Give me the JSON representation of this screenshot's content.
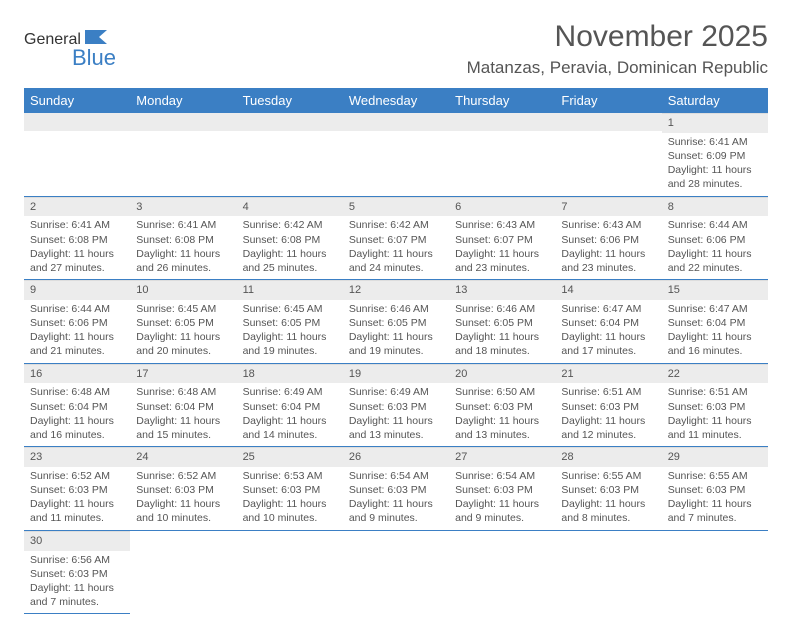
{
  "logo": {
    "part1": "General",
    "part2": "Blue"
  },
  "title": "November 2025",
  "location": "Matanzas, Peravia, Dominican Republic",
  "daysOfWeek": [
    "Sunday",
    "Monday",
    "Tuesday",
    "Wednesday",
    "Thursday",
    "Friday",
    "Saturday"
  ],
  "colors": {
    "header_bg": "#3b7fc4",
    "daynum_bg": "#ececec",
    "text": "#555555",
    "border": "#3b7fc4"
  },
  "startOffset": 6,
  "days": [
    {
      "n": 1,
      "sr": "6:41 AM",
      "ss": "6:09 PM",
      "dl": "11 hours and 28 minutes."
    },
    {
      "n": 2,
      "sr": "6:41 AM",
      "ss": "6:08 PM",
      "dl": "11 hours and 27 minutes."
    },
    {
      "n": 3,
      "sr": "6:41 AM",
      "ss": "6:08 PM",
      "dl": "11 hours and 26 minutes."
    },
    {
      "n": 4,
      "sr": "6:42 AM",
      "ss": "6:08 PM",
      "dl": "11 hours and 25 minutes."
    },
    {
      "n": 5,
      "sr": "6:42 AM",
      "ss": "6:07 PM",
      "dl": "11 hours and 24 minutes."
    },
    {
      "n": 6,
      "sr": "6:43 AM",
      "ss": "6:07 PM",
      "dl": "11 hours and 23 minutes."
    },
    {
      "n": 7,
      "sr": "6:43 AM",
      "ss": "6:06 PM",
      "dl": "11 hours and 23 minutes."
    },
    {
      "n": 8,
      "sr": "6:44 AM",
      "ss": "6:06 PM",
      "dl": "11 hours and 22 minutes."
    },
    {
      "n": 9,
      "sr": "6:44 AM",
      "ss": "6:06 PM",
      "dl": "11 hours and 21 minutes."
    },
    {
      "n": 10,
      "sr": "6:45 AM",
      "ss": "6:05 PM",
      "dl": "11 hours and 20 minutes."
    },
    {
      "n": 11,
      "sr": "6:45 AM",
      "ss": "6:05 PM",
      "dl": "11 hours and 19 minutes."
    },
    {
      "n": 12,
      "sr": "6:46 AM",
      "ss": "6:05 PM",
      "dl": "11 hours and 19 minutes."
    },
    {
      "n": 13,
      "sr": "6:46 AM",
      "ss": "6:05 PM",
      "dl": "11 hours and 18 minutes."
    },
    {
      "n": 14,
      "sr": "6:47 AM",
      "ss": "6:04 PM",
      "dl": "11 hours and 17 minutes."
    },
    {
      "n": 15,
      "sr": "6:47 AM",
      "ss": "6:04 PM",
      "dl": "11 hours and 16 minutes."
    },
    {
      "n": 16,
      "sr": "6:48 AM",
      "ss": "6:04 PM",
      "dl": "11 hours and 16 minutes."
    },
    {
      "n": 17,
      "sr": "6:48 AM",
      "ss": "6:04 PM",
      "dl": "11 hours and 15 minutes."
    },
    {
      "n": 18,
      "sr": "6:49 AM",
      "ss": "6:04 PM",
      "dl": "11 hours and 14 minutes."
    },
    {
      "n": 19,
      "sr": "6:49 AM",
      "ss": "6:03 PM",
      "dl": "11 hours and 13 minutes."
    },
    {
      "n": 20,
      "sr": "6:50 AM",
      "ss": "6:03 PM",
      "dl": "11 hours and 13 minutes."
    },
    {
      "n": 21,
      "sr": "6:51 AM",
      "ss": "6:03 PM",
      "dl": "11 hours and 12 minutes."
    },
    {
      "n": 22,
      "sr": "6:51 AM",
      "ss": "6:03 PM",
      "dl": "11 hours and 11 minutes."
    },
    {
      "n": 23,
      "sr": "6:52 AM",
      "ss": "6:03 PM",
      "dl": "11 hours and 11 minutes."
    },
    {
      "n": 24,
      "sr": "6:52 AM",
      "ss": "6:03 PM",
      "dl": "11 hours and 10 minutes."
    },
    {
      "n": 25,
      "sr": "6:53 AM",
      "ss": "6:03 PM",
      "dl": "11 hours and 10 minutes."
    },
    {
      "n": 26,
      "sr": "6:54 AM",
      "ss": "6:03 PM",
      "dl": "11 hours and 9 minutes."
    },
    {
      "n": 27,
      "sr": "6:54 AM",
      "ss": "6:03 PM",
      "dl": "11 hours and 9 minutes."
    },
    {
      "n": 28,
      "sr": "6:55 AM",
      "ss": "6:03 PM",
      "dl": "11 hours and 8 minutes."
    },
    {
      "n": 29,
      "sr": "6:55 AM",
      "ss": "6:03 PM",
      "dl": "11 hours and 7 minutes."
    },
    {
      "n": 30,
      "sr": "6:56 AM",
      "ss": "6:03 PM",
      "dl": "11 hours and 7 minutes."
    }
  ],
  "labels": {
    "sunrise": "Sunrise:",
    "sunset": "Sunset:",
    "daylight": "Daylight:"
  }
}
